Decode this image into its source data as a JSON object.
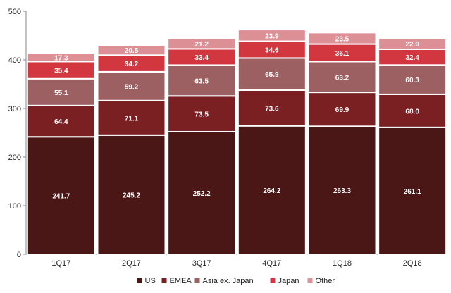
{
  "chart_data": {
    "type": "bar",
    "stacked": true,
    "categories": [
      "1Q17",
      "2Q17",
      "3Q17",
      "4Q17",
      "1Q18",
      "2Q18"
    ],
    "series": [
      {
        "name": "US",
        "color": "#4a1616",
        "values": [
          241.7,
          245.2,
          252.2,
          264.2,
          263.3,
          261.1
        ]
      },
      {
        "name": "EMEA",
        "color": "#7a1f22",
        "values": [
          64.4,
          71.1,
          73.5,
          73.6,
          69.9,
          68.0
        ]
      },
      {
        "name": "Asia ex. Japan",
        "color": "#9c5f62",
        "values": [
          55.1,
          59.2,
          63.5,
          65.9,
          63.2,
          60.3
        ]
      },
      {
        "name": "Japan",
        "color": "#d2373f",
        "values": [
          35.4,
          34.2,
          33.4,
          34.6,
          36.1,
          32.4
        ]
      },
      {
        "name": "Other",
        "color": "#dd8f96",
        "values": [
          17.3,
          20.5,
          21.2,
          23.9,
          23.5,
          22.9
        ]
      }
    ],
    "ylim": [
      0,
      500
    ],
    "yticks": [
      "0",
      "100",
      "200",
      "300",
      "400",
      "500"
    ],
    "grid": false,
    "legend_position": "bottom"
  }
}
